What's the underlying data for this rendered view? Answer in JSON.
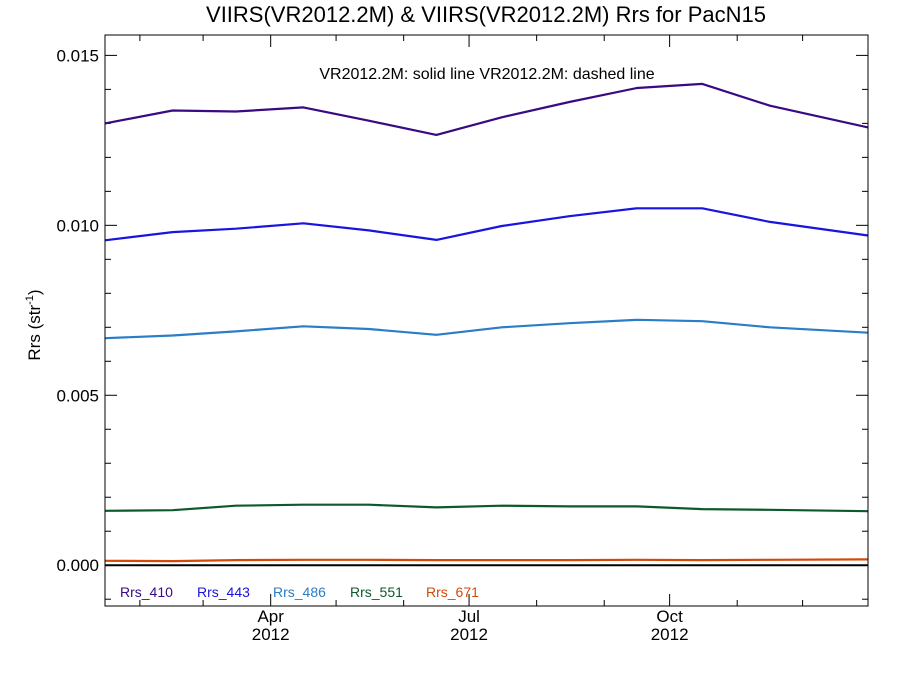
{
  "chart_data": {
    "type": "line",
    "title": "VIIRS(VR2012.2M) & VIIRS(VR2012.2M)  Rrs for PacN15",
    "ylabel_main": "Rrs (str",
    "ylabel_sup": "-1",
    "ylabel_close": ")",
    "annotation": "VR2012.2M: solid line   VR2012.2M: dashed line",
    "xlim": [
      "2012-01-16",
      "2012-12-31"
    ],
    "ylim": [
      -0.0012,
      0.0156
    ],
    "y_ticks": [
      0.0,
      0.005,
      0.01,
      0.015
    ],
    "y_tick_labels": [
      "0.000",
      "0.005",
      "0.010",
      "0.015"
    ],
    "y_minor_step": 0.001,
    "x_ticks": [
      {
        "date": "2012-04-01",
        "month": "Apr",
        "year": "2012"
      },
      {
        "date": "2012-07-01",
        "month": "Jul",
        "year": "2012"
      },
      {
        "date": "2012-10-01",
        "month": "Oct",
        "year": "2012"
      }
    ],
    "x_minor_dates": [
      "2012-02-01",
      "2012-03-01",
      "2012-05-01",
      "2012-06-01",
      "2012-08-01",
      "2012-09-01",
      "2012-11-01",
      "2012-12-01"
    ],
    "zero_line": 0,
    "x": [
      "2012-01-16",
      "2012-02-16",
      "2012-03-16",
      "2012-04-16",
      "2012-05-16",
      "2012-06-16",
      "2012-07-16",
      "2012-08-16",
      "2012-09-16",
      "2012-10-16",
      "2012-11-16",
      "2012-12-31"
    ],
    "series": [
      {
        "name": "Rrs_410",
        "color": "#3a0a82",
        "values": [
          0.013,
          0.01338,
          0.01335,
          0.01347,
          0.01308,
          0.01266,
          0.01318,
          0.01363,
          0.01404,
          0.01416,
          0.01352,
          0.01288
        ]
      },
      {
        "name": "Rrs_443",
        "color": "#1a14e0",
        "values": [
          0.00956,
          0.0098,
          0.0099,
          0.01006,
          0.00985,
          0.00957,
          0.00998,
          0.01027,
          0.0105,
          0.0105,
          0.0101,
          0.0097
        ]
      },
      {
        "name": "Rrs_486",
        "color": "#2a7dc6",
        "values": [
          0.00668,
          0.00676,
          0.00688,
          0.00703,
          0.00695,
          0.00678,
          0.007,
          0.00712,
          0.00722,
          0.00718,
          0.007,
          0.00684
        ]
      },
      {
        "name": "Rrs_551",
        "color": "#0c5a2c",
        "values": [
          0.0016,
          0.00162,
          0.00175,
          0.00178,
          0.00178,
          0.0017,
          0.00175,
          0.00173,
          0.00173,
          0.00165,
          0.00163,
          0.00159
        ]
      },
      {
        "name": "Rrs_671",
        "color": "#d4480a",
        "values": [
          0.00013,
          0.00012,
          0.00015,
          0.00016,
          0.00016,
          0.00015,
          0.00015,
          0.00015,
          0.00016,
          0.00015,
          0.00016,
          0.00017
        ]
      }
    ]
  }
}
